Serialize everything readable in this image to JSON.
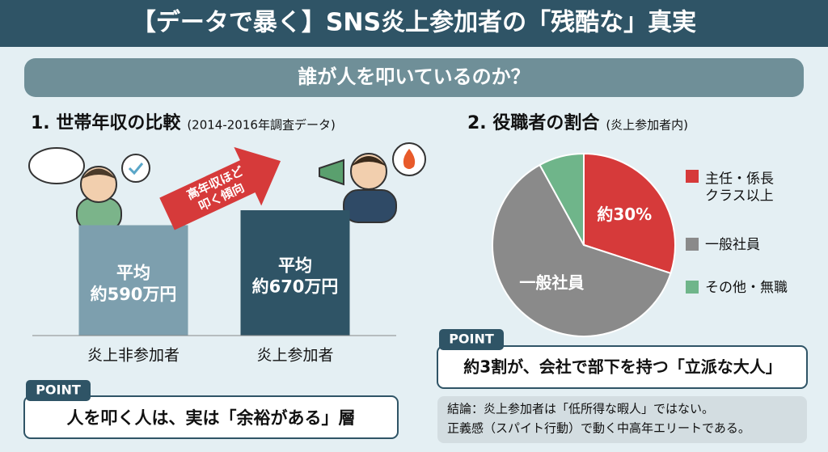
{
  "header": {
    "title": "【データで暴く】SNS炎上参加者の「残酷な」真実",
    "subtitle": "誰が人を叩いているのか？"
  },
  "chart_data": [
    {
      "type": "bar",
      "title": "1. 世帯年収の比較",
      "subtitle": "(2014-2016年調査データ)",
      "categories": [
        "炎上非参加者",
        "炎上参加者"
      ],
      "values": [
        590,
        670
      ],
      "value_labels": [
        "平均\n約590万円",
        "平均\n約670万円"
      ],
      "colors": [
        "#7d9fae",
        "#2f5466"
      ],
      "annotation": "高年収ほど\n叩く傾向"
    },
    {
      "type": "pie",
      "title": "2. 役職者の割合",
      "subtitle": "(炎上参加者内)",
      "categories": [
        "主任・係長\nクラス以上",
        "一般社員",
        "その他・無職"
      ],
      "values": [
        30,
        62,
        8
      ],
      "value_labels": [
        "約30%",
        null,
        null
      ],
      "colors": [
        "#d63a3a",
        "#8a8a8a",
        "#6fb58a"
      ]
    }
  ],
  "points": [
    {
      "tag": "POINT",
      "text": "人を叩く人は、実は「余裕がある」層"
    },
    {
      "tag": "POINT",
      "text": "約3割が、会社で部下を持つ「立派な大人」"
    }
  ],
  "conclusion": [
    "結論：炎上参加者は「低所得な暇人」ではない。",
    "正義感（スパイト行動）で動く中高年エリートである。"
  ]
}
